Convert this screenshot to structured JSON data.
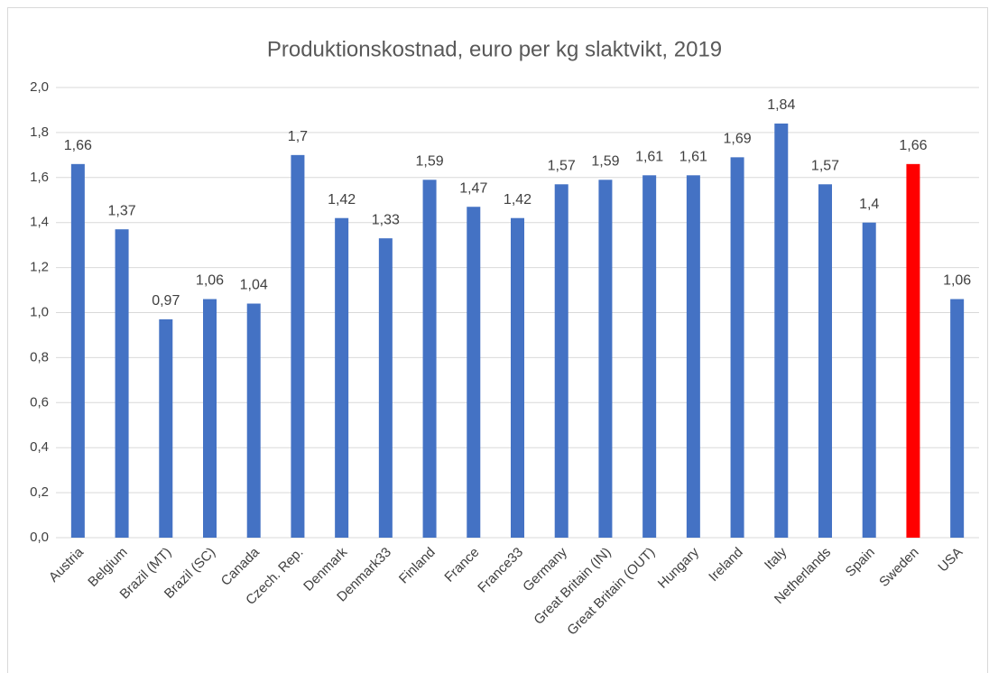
{
  "chart_data": {
    "type": "bar",
    "title": "Produktionskostnad, euro per kg slaktvikt, 2019",
    "categories": [
      "Austria",
      "Belgium",
      "Brazil (MT)",
      "Brazil (SC)",
      "Canada",
      "Czech. Rep.",
      "Denmark",
      "Denmark33",
      "Finland",
      "France",
      "France33",
      "Germany",
      "Great Britain (IN)",
      "Great Britain (OUT)",
      "Hungary",
      "Ireland",
      "Italy",
      "Netherlands",
      "Spain",
      "Sweden",
      "USA"
    ],
    "values": [
      1.66,
      1.37,
      0.97,
      1.06,
      1.04,
      1.7,
      1.42,
      1.33,
      1.59,
      1.47,
      1.42,
      1.57,
      1.59,
      1.61,
      1.61,
      1.69,
      1.84,
      1.57,
      1.4,
      1.66,
      1.06
    ],
    "value_labels": [
      "1,66",
      "1,37",
      "0,97",
      "1,06",
      "1,04",
      "1,7",
      "1,42",
      "1,33",
      "1,59",
      "1,47",
      "1,42",
      "1,57",
      "1,59",
      "1,61",
      "1,61",
      "1,69",
      "1,84",
      "1,57",
      "1,4",
      "1,66",
      "1,06"
    ],
    "colors": [
      "#4472c4",
      "#4472c4",
      "#4472c4",
      "#4472c4",
      "#4472c4",
      "#4472c4",
      "#4472c4",
      "#4472c4",
      "#4472c4",
      "#4472c4",
      "#4472c4",
      "#4472c4",
      "#4472c4",
      "#4472c4",
      "#4472c4",
      "#4472c4",
      "#4472c4",
      "#4472c4",
      "#4472c4",
      "#ff0000",
      "#4472c4"
    ],
    "ylim": [
      0,
      2
    ],
    "yticks": [
      {
        "value": 0,
        "label": "0,0"
      },
      {
        "value": 0.2,
        "label": "0,2"
      },
      {
        "value": 0.4,
        "label": "0,4"
      },
      {
        "value": 0.6,
        "label": "0,6"
      },
      {
        "value": 0.8,
        "label": "0,8"
      },
      {
        "value": 1,
        "label": "1,0"
      },
      {
        "value": 1.2,
        "label": "1,2"
      },
      {
        "value": 1.4,
        "label": "1,4"
      },
      {
        "value": 1.6,
        "label": "1,6"
      },
      {
        "value": 1.8,
        "label": "1,8"
      },
      {
        "value": 2,
        "label": "2,0"
      }
    ],
    "grid": true
  }
}
